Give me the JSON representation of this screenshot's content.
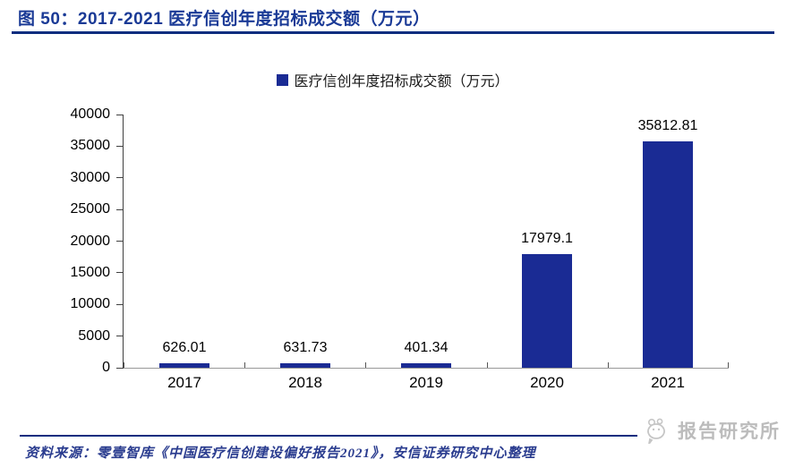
{
  "figure": {
    "title": "图 50：2017-2021 医疗信创年度招标成交额（万元）",
    "source": "资料来源：零壹智库《中国医疗信创建设偏好报告2021》，安信证券研究中心整理",
    "watermark": "报告研究所"
  },
  "chart_data": {
    "type": "bar",
    "title": "医疗信创年度招标成交额（万元）",
    "categories": [
      "2017",
      "2018",
      "2019",
      "2020",
      "2021"
    ],
    "values": [
      626.01,
      631.73,
      401.34,
      17979.1,
      35812.81
    ],
    "value_labels": [
      "626.01",
      "631.73",
      "401.34",
      "17979.1",
      "35812.81"
    ],
    "legend": [
      "医疗信创年度招标成交额（万元）"
    ],
    "legend_position": "top-center",
    "xlabel": "",
    "ylabel": "",
    "ylim": [
      0,
      40000
    ],
    "ytick_step": 5000,
    "ytick_labels": [
      "0",
      "5000",
      "10000",
      "15000",
      "20000",
      "25000",
      "30000",
      "35000",
      "40000"
    ],
    "grid": false,
    "bar_color": "#1A2B94",
    "data_label_color": "#000000"
  },
  "colors": {
    "title_text": "#1A3A96",
    "rule": "#0C2D7F",
    "bar": "#1A2B94",
    "axis_y": "#404040",
    "axis_x": "#999999",
    "source_text": "#2A3C8F",
    "watermark_grey": "#bcbcbc"
  }
}
